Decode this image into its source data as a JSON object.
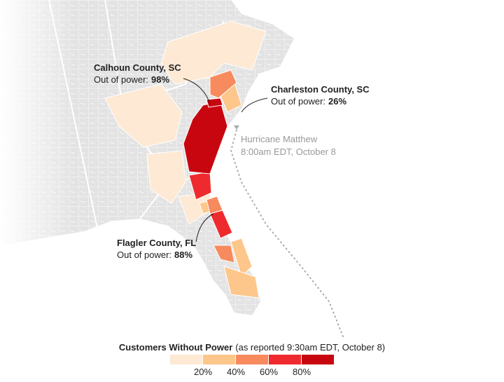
{
  "legend": {
    "title": "Customers Without Power",
    "subtitle": "(as reported 9:30am EDT, October 8)",
    "colors": [
      "#fde9d4",
      "#fdc68a",
      "#f78b5e",
      "#ee2a2e",
      "#c8060f"
    ],
    "ticks": [
      "20%",
      "40%",
      "60%",
      "80%"
    ]
  },
  "annotations": [
    {
      "title": "Calhoun County, SC",
      "label": "Out of power:",
      "value": "98%"
    },
    {
      "title": "Charleston County, SC",
      "label": "Out of power:",
      "value": "26%"
    },
    {
      "title": "Flagler County, FL",
      "label": "Out of power:",
      "value": "88%"
    }
  ],
  "storm": {
    "name": "Hurricane Matthew",
    "time": "8:00am EDT, October 8"
  }
}
